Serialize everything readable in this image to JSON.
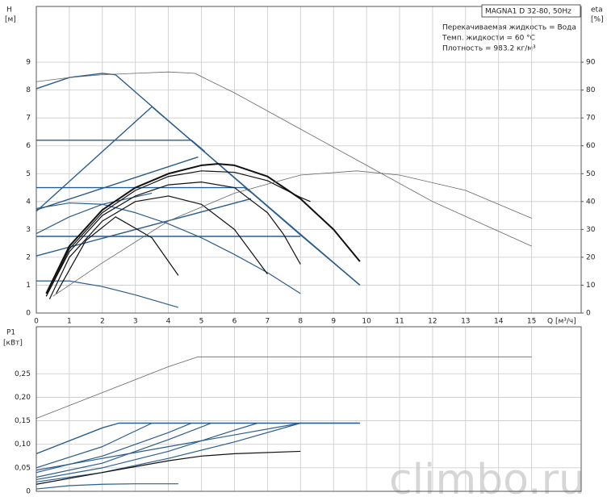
{
  "chart_data": [
    {
      "type": "line",
      "model": "MAGNA1 D 32-80, 50Hz",
      "annotations": [
        "Перекачиваемая жидкость = Вода",
        "Темп. жидкости = 60 °C",
        "Плотность = 983.2 кг/м³"
      ],
      "ylabel": "H",
      "yunit": "[м]",
      "y2label": "eta",
      "y2unit": "[%]",
      "xlabel": "Q [м³/ч]",
      "xlim": [
        0,
        16.5
      ],
      "ylim": [
        0,
        11
      ],
      "y2lim": [
        0,
        110
      ],
      "xticks": [
        0,
        1,
        2,
        3,
        4,
        5,
        6,
        7,
        8,
        9,
        10,
        11,
        12,
        13,
        14,
        15
      ],
      "yticks": [
        0,
        1,
        2,
        3,
        4,
        5,
        6,
        7,
        8,
        9
      ],
      "y2ticks": [
        0,
        10,
        20,
        30,
        40,
        50,
        60,
        70,
        80,
        90
      ],
      "xtick_labels": true,
      "grid": true,
      "series": [
        {
          "color": "#2b5d8c",
          "width": 1.4,
          "x": [
            0,
            1,
            2,
            2.4,
            4,
            6,
            8,
            9.8
          ],
          "values": [
            8.05,
            8.45,
            8.6,
            8.55,
            6.9,
            4.85,
            2.8,
            1.0
          ]
        },
        {
          "color": "#2b5d8c",
          "width": 1.4,
          "x": [
            0,
            3.5,
            9.8
          ],
          "values": [
            3.65,
            7.4,
            1.0
          ]
        },
        {
          "color": "#2b5d8c",
          "width": 1.4,
          "x": [
            0,
            4.7,
            5.1
          ],
          "values": [
            6.2,
            6.2,
            5.8
          ]
        },
        {
          "color": "#2b5d8c",
          "width": 1.4,
          "x": [
            0,
            6.3,
            6.6
          ],
          "values": [
            4.5,
            4.5,
            4.25
          ]
        },
        {
          "color": "#2b5d8c",
          "width": 1.4,
          "x": [
            0,
            8
          ],
          "values": [
            2.75,
            2.75
          ]
        },
        {
          "color": "#2b5d8c",
          "width": 1.4,
          "x": [
            0,
            6.5
          ],
          "values": [
            2.05,
            4.1
          ]
        },
        {
          "color": "#2b5d8c",
          "width": 1.4,
          "x": [
            0,
            4.9
          ],
          "values": [
            3.7,
            5.6
          ]
        },
        {
          "color": "#2b5d8c",
          "width": 1.2,
          "x": [
            0,
            1,
            2,
            3,
            4,
            5,
            6,
            7,
            8
          ],
          "values": [
            3.75,
            3.95,
            3.9,
            3.6,
            3.2,
            2.7,
            2.1,
            1.45,
            0.7
          ]
        },
        {
          "color": "#2b5d8c",
          "width": 1.2,
          "x": [
            0,
            1,
            2,
            3.5
          ],
          "values": [
            2.85,
            3.45,
            3.9,
            4.3
          ]
        },
        {
          "color": "#2b5d8c",
          "width": 1.2,
          "x": [
            0,
            1,
            2,
            3,
            4.3
          ],
          "values": [
            1.15,
            1.15,
            0.95,
            0.65,
            0.2
          ]
        },
        {
          "color": "#111111",
          "width": 2,
          "x": [
            0.3,
            1,
            2,
            3,
            4,
            5,
            5.5,
            6,
            7,
            8,
            9,
            9.8
          ],
          "values": [
            0.7,
            2.4,
            3.7,
            4.5,
            5.0,
            5.3,
            5.35,
            5.3,
            4.9,
            4.1,
            3.0,
            1.85
          ]
        },
        {
          "color": "#111111",
          "width": 1.2,
          "x": [
            0.3,
            1,
            2,
            3,
            4,
            5,
            6,
            7,
            8,
            8.3
          ],
          "values": [
            0.6,
            2.3,
            3.6,
            4.4,
            4.9,
            5.1,
            5.05,
            4.75,
            4.15,
            4.0
          ]
        },
        {
          "color": "#111111",
          "width": 1.2,
          "x": [
            0.3,
            1,
            2,
            3,
            4,
            5,
            6,
            7,
            7.5,
            8
          ],
          "values": [
            0.6,
            2.2,
            3.5,
            4.2,
            4.6,
            4.7,
            4.5,
            3.6,
            2.8,
            1.75
          ]
        },
        {
          "color": "#111111",
          "width": 1.2,
          "x": [
            0.4,
            1,
            2,
            3,
            4,
            5,
            6,
            7
          ],
          "values": [
            0.5,
            2.0,
            3.3,
            4.0,
            4.2,
            3.9,
            3.0,
            1.4
          ]
        },
        {
          "color": "#111111",
          "width": 1.2,
          "x": [
            0.6,
            1.5,
            2.4,
            3.5,
            4.3
          ],
          "values": [
            0.7,
            2.6,
            3.45,
            2.7,
            1.35
          ]
        },
        {
          "color": "#666666",
          "width": 0.8,
          "x": [
            0,
            1,
            2,
            3,
            4,
            4.8,
            6,
            8,
            10,
            12,
            15
          ],
          "values": [
            8.3,
            8.45,
            8.55,
            8.6,
            8.65,
            8.6,
            7.9,
            6.6,
            5.3,
            4.0,
            2.4
          ]
        },
        {
          "color": "#666666",
          "width": 0.8,
          "axis": "y2",
          "x": [
            0.5,
            2,
            4,
            6,
            8,
            9.7,
            11,
            13,
            15
          ],
          "values": [
            6,
            18,
            33,
            43,
            49.5,
            51,
            49.5,
            44,
            34
          ]
        }
      ]
    },
    {
      "type": "line",
      "ylabel": "P1",
      "yunit": "[кВт]",
      "xlim": [
        0,
        16.5
      ],
      "ylim": [
        0,
        0.35
      ],
      "xticks": [
        0,
        1,
        2,
        3,
        4,
        5,
        6,
        7,
        8,
        9,
        10,
        11,
        12,
        13,
        14,
        15
      ],
      "yticks": [
        0,
        {
          "value": 0.05,
          "label": "0,05"
        },
        {
          "value": 0.1,
          "label": "0,10"
        },
        {
          "value": 0.15,
          "label": "0,15"
        },
        {
          "value": 0.2,
          "label": "0,20"
        },
        {
          "value": 0.25,
          "label": "0,25"
        }
      ],
      "xtick_labels": false,
      "grid": true,
      "series": [
        {
          "color": "#666666",
          "width": 0.8,
          "x": [
            0,
            2,
            4,
            4.9,
            15
          ],
          "values": [
            0.155,
            0.21,
            0.265,
            0.286,
            0.286
          ]
        },
        {
          "color": "#2b5d8c",
          "width": 1.4,
          "x": [
            0,
            2,
            2.5,
            9.8
          ],
          "values": [
            0.08,
            0.135,
            0.145,
            0.145
          ]
        },
        {
          "color": "#2b5d8c",
          "width": 1.2,
          "x": [
            0,
            2,
            3.5
          ],
          "values": [
            0.05,
            0.095,
            0.145
          ]
        },
        {
          "color": "#2b5d8c",
          "width": 1.2,
          "x": [
            0,
            2,
            4,
            4.7
          ],
          "values": [
            0.04,
            0.075,
            0.125,
            0.145
          ]
        },
        {
          "color": "#2b5d8c",
          "width": 1.2,
          "x": [
            0,
            2,
            4,
            5.3
          ],
          "values": [
            0.03,
            0.06,
            0.11,
            0.145
          ]
        },
        {
          "color": "#2b5d8c",
          "width": 1.2,
          "x": [
            0,
            2,
            4,
            6,
            6.7
          ],
          "values": [
            0.025,
            0.05,
            0.085,
            0.13,
            0.145
          ]
        },
        {
          "color": "#2b5d8c",
          "width": 1.2,
          "x": [
            0,
            2,
            4,
            6,
            8
          ],
          "values": [
            0.02,
            0.04,
            0.07,
            0.105,
            0.145
          ]
        },
        {
          "color": "#2b5d8c",
          "width": 1.2,
          "x": [
            0,
            2,
            4,
            6,
            8,
            9.8
          ],
          "values": [
            0.045,
            0.07,
            0.095,
            0.12,
            0.145,
            0.145
          ]
        },
        {
          "color": "#111111",
          "width": 1.2,
          "x": [
            0,
            2,
            4,
            5,
            6,
            8
          ],
          "values": [
            0.015,
            0.04,
            0.065,
            0.075,
            0.08,
            0.085
          ]
        },
        {
          "color": "#2b5d8c",
          "width": 1.2,
          "x": [
            0,
            1,
            2,
            3,
            4.3
          ],
          "values": [
            0.005,
            0.012,
            0.015,
            0.016,
            0.016
          ]
        }
      ]
    }
  ],
  "watermark": "climbo.ru"
}
